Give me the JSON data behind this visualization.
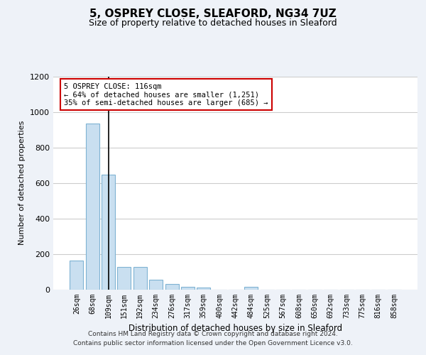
{
  "title": "5, OSPREY CLOSE, SLEAFORD, NG34 7UZ",
  "subtitle": "Size of property relative to detached houses in Sleaford",
  "xlabel": "Distribution of detached houses by size in Sleaford",
  "ylabel": "Number of detached properties",
  "footer_line1": "Contains HM Land Registry data © Crown copyright and database right 2024.",
  "footer_line2": "Contains public sector information licensed under the Open Government Licence v3.0.",
  "categories": [
    "26sqm",
    "68sqm",
    "109sqm",
    "151sqm",
    "192sqm",
    "234sqm",
    "276sqm",
    "317sqm",
    "359sqm",
    "400sqm",
    "442sqm",
    "484sqm",
    "525sqm",
    "567sqm",
    "608sqm",
    "650sqm",
    "692sqm",
    "733sqm",
    "775sqm",
    "816sqm",
    "858sqm"
  ],
  "values": [
    163,
    935,
    648,
    128,
    128,
    55,
    30,
    15,
    10,
    0,
    0,
    15,
    0,
    0,
    0,
    0,
    0,
    0,
    0,
    0,
    0
  ],
  "bar_color": "#c9dff0",
  "bar_edge_color": "#7fb3d3",
  "vline_x_index": 2,
  "vline_color": "#000000",
  "annotation_text": "5 OSPREY CLOSE: 116sqm\n← 64% of detached houses are smaller (1,251)\n35% of semi-detached houses are larger (685) →",
  "annotation_box_color": "#ffffff",
  "annotation_box_edge": "#cc0000",
  "ylim": [
    0,
    1200
  ],
  "yticks": [
    0,
    200,
    400,
    600,
    800,
    1000,
    1200
  ],
  "grid_color": "#cccccc",
  "background_color": "#eef2f8",
  "plot_bg_color": "#ffffff",
  "title_fontsize": 11,
  "subtitle_fontsize": 9
}
